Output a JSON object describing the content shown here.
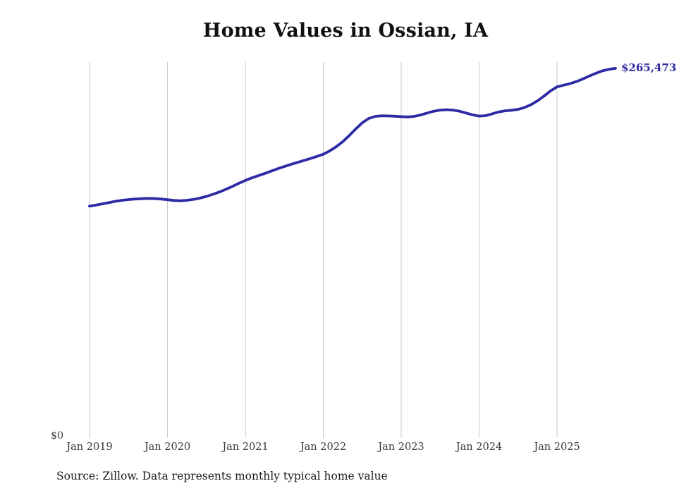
{
  "title": "Home Values in Ossian, IA",
  "source_note": "Source: Zillow. Data represents monthly typical home value",
  "chart_data": {
    "type": "line",
    "title": "Home Values in Ossian, IA",
    "series_name": "Monthly typical home value",
    "xlabel": "",
    "ylabel": "",
    "ylim": [
      0,
      270000
    ],
    "grid": "vertical-only",
    "legend_position": "none",
    "line_color": "#2d2aa5",
    "grid_color": "#cacaca",
    "y_axis_zero_label": "$0",
    "end_label": "$265,473",
    "end_value": 265473,
    "x_tick_labels": [
      "Jan 2019",
      "Jan 2020",
      "Jan 2021",
      "Jan 2022",
      "Jan 2023",
      "Jan 2024",
      "Jan 2025"
    ],
    "x": [
      "2019-01",
      "2019-02",
      "2019-03",
      "2019-04",
      "2019-05",
      "2019-06",
      "2019-07",
      "2019-08",
      "2019-09",
      "2019-10",
      "2019-11",
      "2019-12",
      "2020-01",
      "2020-02",
      "2020-03",
      "2020-04",
      "2020-05",
      "2020-06",
      "2020-07",
      "2020-08",
      "2020-09",
      "2020-10",
      "2020-11",
      "2020-12",
      "2021-01",
      "2021-02",
      "2021-03",
      "2021-04",
      "2021-05",
      "2021-06",
      "2021-07",
      "2021-08",
      "2021-09",
      "2021-10",
      "2021-11",
      "2021-12",
      "2022-01",
      "2022-02",
      "2022-03",
      "2022-04",
      "2022-05",
      "2022-06",
      "2022-07",
      "2022-08",
      "2022-09",
      "2022-10",
      "2022-11",
      "2022-12",
      "2023-01",
      "2023-02",
      "2023-03",
      "2023-04",
      "2023-05",
      "2023-06",
      "2023-07",
      "2023-08",
      "2023-09",
      "2023-10",
      "2023-11",
      "2023-12",
      "2024-01",
      "2024-02",
      "2024-03",
      "2024-04",
      "2024-05",
      "2024-06",
      "2024-07",
      "2024-08",
      "2024-09",
      "2024-10",
      "2024-11",
      "2024-12",
      "2025-01",
      "2025-02",
      "2025-03",
      "2025-04",
      "2025-05",
      "2025-06",
      "2025-07",
      "2025-08",
      "2025-09",
      "2025-10"
    ],
    "values": [
      166500,
      167300,
      168200,
      169100,
      170000,
      170700,
      171200,
      171600,
      171900,
      172100,
      172000,
      171600,
      171100,
      170600,
      170400,
      170700,
      171300,
      172300,
      173500,
      175000,
      176700,
      178600,
      180700,
      182900,
      185000,
      186800,
      188400,
      190000,
      191700,
      193400,
      195000,
      196500,
      197900,
      199300,
      200700,
      202200,
      203800,
      206200,
      209200,
      212800,
      217200,
      222000,
      226400,
      229500,
      231000,
      231400,
      231300,
      231100,
      230800,
      230600,
      231000,
      232000,
      233400,
      234700,
      235500,
      235800,
      235500,
      234700,
      233400,
      232100,
      231200,
      231500,
      232800,
      234200,
      235000,
      235400,
      236000,
      237400,
      239400,
      242200,
      245600,
      249300,
      252200,
      253400,
      254500,
      256000,
      257900,
      260000,
      262000,
      263700,
      264800,
      265473
    ]
  }
}
